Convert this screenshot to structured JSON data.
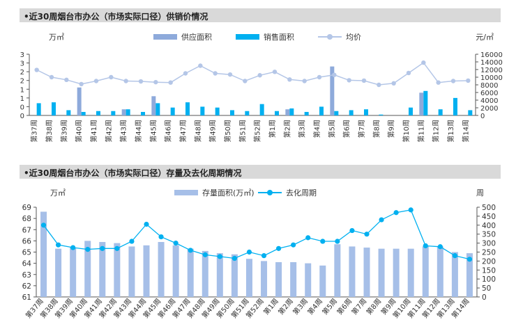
{
  "panels": [
    {
      "title": "•近30周烟台市办公（市场实际口径）供销价情况",
      "unit_left": "万㎡",
      "unit_right": "元/㎡"
    },
    {
      "title": "•近30周烟台市办公（市场实际口径）存量及去化周期情况",
      "unit_left": "万㎡",
      "unit_right": "周"
    }
  ],
  "chart_data": [
    {
      "type": "bar",
      "categories": [
        "第37周",
        "第38周",
        "第39周",
        "第40周",
        "第41周",
        "第42周",
        "第43周",
        "第44周",
        "第45周",
        "第46周",
        "第47周",
        "第48周",
        "第49周",
        "第50周",
        "第51周",
        "第52周",
        "第1周",
        "第2周",
        "第3周",
        "第4周",
        "第5周",
        "第6周",
        "第7周",
        "第8周",
        "第9周",
        "第10周",
        "第11周",
        "第12周",
        "第13周",
        "第14周"
      ],
      "series": [
        {
          "name": "供应面积",
          "type": "bar",
          "color": "#8eaadb",
          "axis": "left",
          "values": [
            0,
            0,
            0,
            1.6,
            0,
            0,
            0.35,
            0,
            1.1,
            0,
            0,
            0,
            0,
            0,
            0,
            0,
            0,
            0.35,
            0,
            0,
            2.8,
            0,
            0,
            0,
            0,
            0,
            1.3,
            0,
            0,
            0
          ]
        },
        {
          "name": "销售面积",
          "type": "bar",
          "color": "#00b0f0",
          "axis": "left",
          "values": [
            0.7,
            0.75,
            0.3,
            0.2,
            0.25,
            0.25,
            0.35,
            0.2,
            0.7,
            0.45,
            0.75,
            0.5,
            0.45,
            0.3,
            0.25,
            0.65,
            0.25,
            0.4,
            0.2,
            0.5,
            0.25,
            0.3,
            0.35,
            0.05,
            0,
            0.45,
            1.4,
            0.35,
            1.0,
            0.3
          ]
        },
        {
          "name": "均价",
          "type": "line",
          "color": "#b4c6e7",
          "axis": "right",
          "values": [
            11900,
            10000,
            9300,
            8200,
            9000,
            10000,
            9000,
            8900,
            8700,
            8600,
            11000,
            13000,
            11000,
            10700,
            9000,
            10500,
            11400,
            9400,
            9000,
            10000,
            10600,
            9200,
            9100,
            8000,
            8400,
            11100,
            13800,
            8600,
            9000,
            9100
          ]
        }
      ],
      "yticks_left": [
        "0",
        "0",
        "1",
        "1",
        "2",
        "2",
        "3",
        "3"
      ],
      "ylim_left": [
        0,
        3.5
      ],
      "ylim_right": [
        0,
        16000
      ],
      "yticks_right": [
        "0",
        "2000",
        "4000",
        "6000",
        "8000",
        "10000",
        "12000",
        "14000",
        "16000"
      ]
    },
    {
      "type": "bar",
      "categories": [
        "第37周",
        "第38周",
        "第39周",
        "第40周",
        "第41周",
        "第42周",
        "第43周",
        "第44周",
        "第45周",
        "第46周",
        "第47周",
        "第48周",
        "第49周",
        "第50周",
        "第51周",
        "第52周",
        "第1周",
        "第2周",
        "第3周",
        "第4周",
        "第5周",
        "第6周",
        "第7周",
        "第8周",
        "第9周",
        "第10周",
        "第11周",
        "第12周",
        "第13周",
        "第14周"
      ],
      "series": [
        {
          "name": "存量面积(万㎡)",
          "type": "bar",
          "color": "#a6bfe8",
          "axis": "left",
          "values": [
            68.6,
            65.3,
            65.4,
            66.0,
            65.9,
            65.8,
            65.5,
            65.6,
            65.9,
            65.6,
            65.3,
            65.1,
            64.9,
            64.8,
            64.4,
            64.2,
            64.1,
            64.1,
            64.0,
            63.8,
            65.7,
            65.5,
            65.4,
            65.3,
            65.3,
            65.3,
            65.5,
            65.5,
            65.0,
            64.9
          ]
        },
        {
          "name": "去化周期",
          "type": "line",
          "color": "#00b0f0",
          "axis": "right",
          "values": [
            400,
            290,
            275,
            265,
            270,
            270,
            310,
            405,
            335,
            300,
            260,
            235,
            225,
            215,
            250,
            230,
            270,
            290,
            330,
            310,
            310,
            370,
            350,
            430,
            470,
            485,
            285,
            280,
            230,
            210
          ]
        }
      ],
      "ylim_left": [
        61,
        69
      ],
      "ylim_right": [
        0,
        500
      ],
      "yticks_left": [
        "61",
        "62",
        "63",
        "64",
        "65",
        "66",
        "67",
        "68",
        "69"
      ],
      "yticks_right": [
        "0",
        "50",
        "100",
        "150",
        "200",
        "250",
        "300",
        "350",
        "400",
        "450",
        "500"
      ]
    }
  ]
}
